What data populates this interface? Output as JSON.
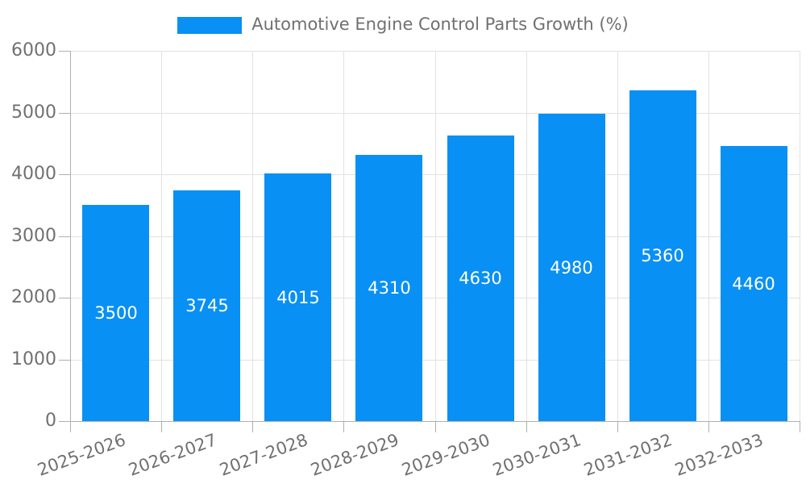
{
  "chart_data": {
    "type": "bar",
    "title": "Automotive Engine Control Parts Growth (%)",
    "legend": {
      "position": "top",
      "entries": [
        "Automotive Engine Control Parts Growth (%)"
      ]
    },
    "categories": [
      "2025-2026",
      "2026-2027",
      "2027-2028",
      "2028-2029",
      "2029-2030",
      "2030-2031",
      "2031-2032",
      "2032-2033"
    ],
    "series": [
      {
        "name": "Automotive Engine Control Parts Growth (%)",
        "values": [
          3500,
          3745,
          4015,
          4310,
          4630,
          4980,
          5360,
          4460
        ]
      }
    ],
    "bar_value_labels": [
      "3500",
      "3745",
      "4015",
      "4310",
      "4630",
      "4980",
      "5360",
      "4460"
    ],
    "xlabel": "",
    "ylabel": "",
    "ylim": [
      0,
      6000
    ],
    "yticks": [
      0,
      1000,
      2000,
      3000,
      4000,
      5000,
      6000
    ],
    "ytick_labels": [
      "0",
      "1000",
      "2000",
      "3000",
      "4000",
      "5000",
      "6000"
    ],
    "grid": true,
    "x_label_rotation_deg": -20,
    "colors": {
      "bar": "#0990f4",
      "grid": "#e2e2e2",
      "axis": "#b0b0b0",
      "text": "#707070",
      "value_label": "#ffffff",
      "background": "#ffffff"
    }
  }
}
